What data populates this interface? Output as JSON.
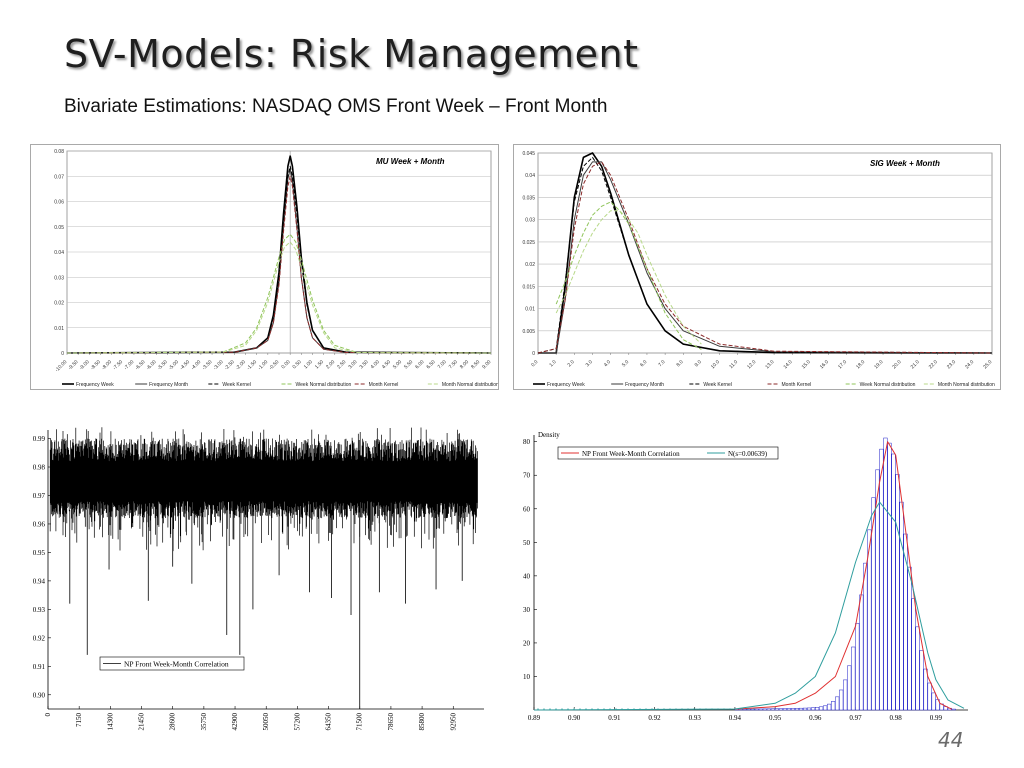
{
  "slide": {
    "title": "SV-Models: Risk Management",
    "subtitle": "Bivariate Estimations: NASDAQ OMS Front Week – Front Month",
    "page_number": "44"
  },
  "colors": {
    "week_black": "#000000",
    "month_dark": "#3a3a3a",
    "kernel_red": "#8b2a2a",
    "normal_green": "#8fc45a",
    "density_red": "#e03030",
    "normal_teal": "#2f9e9e",
    "histogram_blue": "#2020c8",
    "grid": "#bdbdbd"
  },
  "chart_data": [
    {
      "type": "line",
      "title": "MU Week + Month",
      "xlim": [
        -10.0,
        9.0
      ],
      "ylim": [
        0,
        0.08
      ],
      "x_ticks": [
        "-10.00",
        "-9.50",
        "-9.00",
        "-8.50",
        "-8.00",
        "-7.50",
        "-7.00",
        "-6.50",
        "-6.00",
        "-5.50",
        "-5.00",
        "-4.50",
        "-4.00",
        "-3.50",
        "-3.00",
        "-2.50",
        "-2.00",
        "-1.50",
        "-1.00",
        "-0.50",
        "0.00",
        "0.50",
        "1.00",
        "1.50",
        "2.00",
        "2.50",
        "3.00",
        "3.50",
        "4.00",
        "4.50",
        "5.00",
        "5.50",
        "6.00",
        "6.50",
        "7.00",
        "7.50",
        "8.00",
        "8.50",
        "9.00"
      ],
      "y_ticks": [
        "0",
        "0.01",
        "0.02",
        "0.03",
        "0.04",
        "0.05",
        "0.06",
        "0.07",
        "0.08"
      ],
      "legend": [
        "Frequency Week",
        "Frequency Month",
        "Week Kernel",
        "Week Normal distribution",
        "Month Kernel",
        "Month Normal distribution"
      ],
      "legend_position": "bottom",
      "grid": true,
      "series": [
        {
          "name": "Frequency Week",
          "style": "solid",
          "color": "#000000",
          "width": 1.6,
          "x": [
            -10,
            -2.5,
            -1.5,
            -1.0,
            -0.75,
            -0.5,
            -0.3,
            -0.1,
            0.0,
            0.1,
            0.3,
            0.5,
            0.75,
            1.0,
            1.5,
            2.5,
            9
          ],
          "y": [
            0.0,
            0.0003,
            0.002,
            0.006,
            0.015,
            0.032,
            0.055,
            0.074,
            0.078,
            0.074,
            0.058,
            0.038,
            0.02,
            0.009,
            0.002,
            0.0003,
            0.0
          ]
        },
        {
          "name": "Frequency Month",
          "style": "solid",
          "color": "#3a3a3a",
          "width": 1.0,
          "x": [
            -10,
            -2.5,
            -1.5,
            -1.0,
            -0.75,
            -0.5,
            -0.3,
            -0.1,
            0.0,
            0.1,
            0.3,
            0.5,
            0.75,
            1.0,
            1.5,
            2.5,
            9
          ],
          "y": [
            0.0,
            0.0003,
            0.002,
            0.005,
            0.012,
            0.028,
            0.05,
            0.069,
            0.073,
            0.068,
            0.05,
            0.03,
            0.014,
            0.006,
            0.0015,
            0.0002,
            0.0
          ]
        },
        {
          "name": "Week Kernel",
          "style": "dashed",
          "color": "#000000",
          "width": 1.0,
          "x": [
            -10,
            -2.5,
            -1.5,
            -1.0,
            -0.75,
            -0.5,
            -0.3,
            -0.1,
            0.0,
            0.1,
            0.3,
            0.5,
            0.75,
            1.0,
            1.5,
            2.5,
            9
          ],
          "y": [
            0.0,
            0.0003,
            0.002,
            0.006,
            0.014,
            0.03,
            0.052,
            0.07,
            0.074,
            0.07,
            0.055,
            0.036,
            0.019,
            0.009,
            0.002,
            0.0003,
            0.0
          ]
        },
        {
          "name": "Week Normal distribution",
          "style": "dashed",
          "color": "#8fc45a",
          "width": 1.0,
          "x": [
            -10,
            -3.0,
            -2.0,
            -1.5,
            -1.0,
            -0.5,
            -0.25,
            0.0,
            0.25,
            0.5,
            1.0,
            1.5,
            2.0,
            3.0,
            9
          ],
          "y": [
            0.0,
            0.0004,
            0.004,
            0.01,
            0.022,
            0.038,
            0.045,
            0.047,
            0.044,
            0.037,
            0.021,
            0.009,
            0.003,
            0.0002,
            0.0
          ]
        },
        {
          "name": "Month Kernel",
          "style": "dashed",
          "color": "#8b2a2a",
          "width": 1.0,
          "x": [
            -10,
            -2.5,
            -1.5,
            -1.0,
            -0.75,
            -0.5,
            -0.3,
            -0.1,
            0.0,
            0.1,
            0.3,
            0.5,
            0.75,
            1.0,
            1.5,
            2.5,
            9
          ],
          "y": [
            0.0,
            0.0003,
            0.002,
            0.005,
            0.012,
            0.027,
            0.048,
            0.066,
            0.07,
            0.066,
            0.049,
            0.03,
            0.014,
            0.006,
            0.0015,
            0.0002,
            0.0
          ]
        },
        {
          "name": "Month Normal distribution",
          "style": "dashed",
          "color": "#b8d98a",
          "width": 1.0,
          "x": [
            -10,
            -3.0,
            -2.0,
            -1.5,
            -1.0,
            -0.5,
            -0.25,
            0.0,
            0.25,
            0.5,
            1.0,
            1.5,
            2.0,
            3.0,
            9
          ],
          "y": [
            0.0,
            0.0003,
            0.003,
            0.009,
            0.02,
            0.036,
            0.042,
            0.044,
            0.041,
            0.034,
            0.019,
            0.008,
            0.002,
            0.0002,
            0.0
          ]
        }
      ]
    },
    {
      "type": "line",
      "title": "SIG Week + Month",
      "xlim": [
        0,
        25
      ],
      "ylim": [
        0,
        0.045
      ],
      "x_ticks": [
        "0.0",
        "1.0",
        "2.0",
        "3.0",
        "4.0",
        "5.0",
        "6.0",
        "7.0",
        "8.0",
        "9.0",
        "10.0",
        "11.0",
        "12.0",
        "13.0",
        "14.0",
        "15.0",
        "16.0",
        "17.0",
        "18.0",
        "19.0",
        "20.0",
        "21.0",
        "22.0",
        "23.0",
        "24.0",
        "25.0"
      ],
      "y_ticks": [
        "0",
        "0.005",
        "0.01",
        "0.015",
        "0.02",
        "0.025",
        "0.03",
        "0.035",
        "0.04",
        "0.045"
      ],
      "legend": [
        "Frequency Week",
        "Frequency Month",
        "Week Kernel",
        "Month Kernel",
        "Week Normal distribution",
        "Month Normal distribution"
      ],
      "legend_position": "bottom",
      "grid": true,
      "series": [
        {
          "name": "Frequency Week",
          "style": "solid",
          "color": "#000000",
          "width": 1.6,
          "x": [
            0,
            1.0,
            1.5,
            2.0,
            2.5,
            3.0,
            3.5,
            4.0,
            5.0,
            6.0,
            7.0,
            8.0,
            10.0,
            13.0,
            25
          ],
          "y": [
            0.0,
            0.0,
            0.015,
            0.035,
            0.044,
            0.045,
            0.042,
            0.036,
            0.022,
            0.011,
            0.005,
            0.002,
            0.0005,
            0.0001,
            0.0
          ]
        },
        {
          "name": "Frequency Month",
          "style": "solid",
          "color": "#3a3a3a",
          "width": 1.0,
          "x": [
            0,
            1.0,
            1.5,
            2.0,
            2.5,
            3.0,
            3.5,
            4.0,
            5.0,
            6.0,
            7.0,
            8.0,
            10.0,
            13.0,
            25
          ],
          "y": [
            0.0,
            0.0,
            0.012,
            0.03,
            0.04,
            0.043,
            0.043,
            0.039,
            0.029,
            0.018,
            0.01,
            0.005,
            0.0015,
            0.0003,
            0.0
          ]
        },
        {
          "name": "Week Kernel",
          "style": "dashed",
          "color": "#000000",
          "width": 1.0,
          "x": [
            0,
            1.0,
            1.5,
            2.0,
            2.5,
            3.0,
            3.5,
            4.0,
            5.0,
            6.0,
            7.0,
            8.0,
            10.0,
            13.0,
            25
          ],
          "y": [
            0.0,
            0.001,
            0.016,
            0.034,
            0.042,
            0.044,
            0.041,
            0.035,
            0.022,
            0.011,
            0.005,
            0.002,
            0.0005,
            0.0001,
            0.0
          ]
        },
        {
          "name": "Month Kernel",
          "style": "dashed",
          "color": "#8b2a2a",
          "width": 1.0,
          "x": [
            0,
            1.0,
            1.5,
            2.0,
            2.5,
            3.0,
            3.5,
            4.0,
            5.0,
            6.0,
            7.0,
            8.0,
            10.0,
            13.0,
            25
          ],
          "y": [
            0.0,
            0.001,
            0.012,
            0.028,
            0.038,
            0.042,
            0.043,
            0.04,
            0.03,
            0.019,
            0.011,
            0.006,
            0.002,
            0.0004,
            0.0
          ]
        },
        {
          "name": "Week Normal distribution",
          "style": "dashed",
          "color": "#8fc45a",
          "width": 1.0,
          "x": [
            1.0,
            1.5,
            2.0,
            2.5,
            3.0,
            3.5,
            4.0,
            4.5,
            5.0,
            5.5,
            6.0,
            7.0,
            8.0,
            9.0
          ],
          "y": [
            0.011,
            0.016,
            0.022,
            0.027,
            0.031,
            0.033,
            0.034,
            0.032,
            0.029,
            0.024,
            0.019,
            0.009,
            0.003,
            0.0008
          ]
        },
        {
          "name": "Month Normal distribution",
          "style": "dashed",
          "color": "#b8d98a",
          "width": 1.0,
          "x": [
            1.0,
            1.5,
            2.0,
            2.5,
            3.0,
            3.5,
            4.0,
            4.5,
            5.0,
            5.5,
            6.0,
            7.0,
            8.0,
            9.0
          ],
          "y": [
            0.009,
            0.013,
            0.018,
            0.023,
            0.027,
            0.03,
            0.032,
            0.032,
            0.03,
            0.027,
            0.022,
            0.013,
            0.006,
            0.002
          ]
        }
      ]
    },
    {
      "type": "line",
      "title": "",
      "xlim": [
        0,
        100000
      ],
      "ylim": [
        0.895,
        0.993
      ],
      "x_ticks": [
        "0",
        "7150",
        "14300",
        "21450",
        "28600",
        "35750",
        "42900",
        "50050",
        "57200",
        "64350",
        "71500",
        "78650",
        "85800",
        "92950"
      ],
      "y_ticks": [
        "0.90",
        "0.91",
        "0.92",
        "0.93",
        "0.94",
        "0.95",
        "0.96",
        "0.97",
        "0.98",
        "0.99"
      ],
      "legend": [
        "NP Front Week-Month Correlation"
      ],
      "legend_position": "bottom-left",
      "grid": false,
      "band": {
        "low": 0.962,
        "high": 0.99,
        "center": 0.977
      },
      "spikes": [
        {
          "x": 9000,
          "y": 0.914
        },
        {
          "x": 5000,
          "y": 0.932
        },
        {
          "x": 23000,
          "y": 0.933
        },
        {
          "x": 33000,
          "y": 0.939
        },
        {
          "x": 41000,
          "y": 0.921
        },
        {
          "x": 44000,
          "y": 0.914
        },
        {
          "x": 47000,
          "y": 0.93
        },
        {
          "x": 60000,
          "y": 0.936
        },
        {
          "x": 65000,
          "y": 0.934
        },
        {
          "x": 69500,
          "y": 0.928
        },
        {
          "x": 71500,
          "y": 0.895
        },
        {
          "x": 76000,
          "y": 0.936
        },
        {
          "x": 82000,
          "y": 0.932
        },
        {
          "x": 89000,
          "y": 0.937
        },
        {
          "x": 95000,
          "y": 0.94
        },
        {
          "x": 14000,
          "y": 0.944
        },
        {
          "x": 28600,
          "y": 0.945
        },
        {
          "x": 53000,
          "y": 0.942
        }
      ]
    },
    {
      "type": "bar",
      "title": "",
      "ylabel": "Density",
      "xlim": [
        0.89,
        0.998
      ],
      "ylim": [
        0,
        82
      ],
      "x_ticks": [
        "0.89",
        "0.90",
        "0.91",
        "0.92",
        "0.93",
        "0.94",
        "0.95",
        "0.96",
        "0.97",
        "0.98",
        "0.99"
      ],
      "y_ticks": [
        "10",
        "20",
        "30",
        "40",
        "50",
        "60",
        "70",
        "80"
      ],
      "legend": [
        "NP Front Week-Month Correlation",
        "N(s=0.00639)"
      ],
      "legend_position": "top-left",
      "grid": false,
      "histogram": {
        "bin_width": 0.001,
        "mu": 0.978,
        "sigma": 0.0049,
        "peak": 80,
        "start": 0.94,
        "end": 0.995
      },
      "series": [
        {
          "name": "NP Front Week-Month Correlation",
          "style": "solid",
          "color": "#e03030",
          "x": [
            0.94,
            0.95,
            0.955,
            0.96,
            0.965,
            0.97,
            0.973,
            0.976,
            0.978,
            0.98,
            0.982,
            0.985,
            0.988,
            0.991,
            0.994
          ],
          "y": [
            0.2,
            1,
            2,
            5,
            10,
            25,
            45,
            68,
            80,
            76,
            58,
            30,
            10,
            2,
            0.2
          ]
        },
        {
          "name": "N(s=0.00639)",
          "style": "solid",
          "color": "#2f9e9e",
          "x": [
            0.89,
            0.94,
            0.95,
            0.955,
            0.96,
            0.965,
            0.97,
            0.974,
            0.976,
            0.98,
            0.984,
            0.988,
            0.99,
            0.993,
            0.997
          ],
          "y": [
            0,
            0.3,
            2,
            5,
            10,
            23,
            44,
            58,
            62,
            56,
            38,
            17,
            9,
            3,
            0.5
          ]
        }
      ]
    }
  ]
}
